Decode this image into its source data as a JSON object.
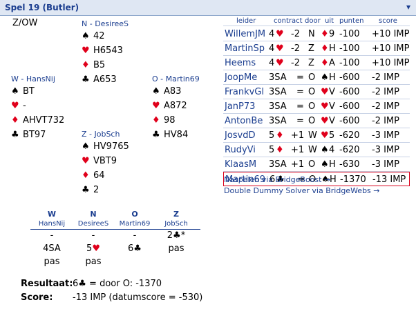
{
  "title": "Spel 19 (Butler)",
  "close_symbol": "▾",
  "dealer_vul": "Z/OW",
  "north": {
    "name": "N - DesireeS",
    "spades": "42",
    "hearts": "H6543",
    "diamonds": "B5",
    "clubs": "A653"
  },
  "west": {
    "name": "W - HansNij",
    "spades": "BT",
    "hearts": "-",
    "diamonds": "AHVT732",
    "clubs": "BT97"
  },
  "east": {
    "name": "O - Martin69",
    "spades": "A83",
    "hearts": "A872",
    "diamonds": "98",
    "clubs": "HV84"
  },
  "south": {
    "name": "Z - JobSch",
    "spades": "HV9765",
    "hearts": "VBT9",
    "diamonds": "64",
    "clubs": "2"
  },
  "table_headers": {
    "leider": "leider",
    "contract": "contract",
    "door": "door",
    "uit": "uit",
    "punten": "punten",
    "score": "score"
  },
  "results": [
    {
      "leader": "WillemJM",
      "level": "4",
      "strain": "♥",
      "res": "-2",
      "door": "N",
      "lead_suit": "♦",
      "lead_card": "9",
      "points": "-100",
      "score": "+10 IMP"
    },
    {
      "leader": "MartinSp",
      "level": "4",
      "strain": "♥",
      "res": "-2",
      "door": "Z",
      "lead_suit": "♦",
      "lead_card": "H",
      "points": "-100",
      "score": "+10 IMP"
    },
    {
      "leader": "Heems",
      "level": "4",
      "strain": "♥",
      "res": "-2",
      "door": "Z",
      "lead_suit": "♦",
      "lead_card": "A",
      "points": "-100",
      "score": "+10 IMP"
    },
    {
      "leader": "JoopMe",
      "level": "3SA",
      "strain": "",
      "res": "=",
      "door": "O",
      "lead_suit": "♠",
      "lead_card": "H",
      "points": "-600",
      "score": "-2 IMP"
    },
    {
      "leader": "FrankvGl",
      "level": "3SA",
      "strain": "",
      "res": "=",
      "door": "O",
      "lead_suit": "♥",
      "lead_card": "V",
      "points": "-600",
      "score": "-2 IMP"
    },
    {
      "leader": "JanP73",
      "level": "3SA",
      "strain": "",
      "res": "=",
      "door": "O",
      "lead_suit": "♥",
      "lead_card": "V",
      "points": "-600",
      "score": "-2 IMP"
    },
    {
      "leader": "AntonBe",
      "level": "3SA",
      "strain": "",
      "res": "=",
      "door": "O",
      "lead_suit": "♥",
      "lead_card": "V",
      "points": "-600",
      "score": "-2 IMP"
    },
    {
      "leader": "JosvdD",
      "level": "5",
      "strain": "♦",
      "res": "+1",
      "door": "W",
      "lead_suit": "♥",
      "lead_card": "5",
      "points": "-620",
      "score": "-3 IMP"
    },
    {
      "leader": "RudyVi",
      "level": "5",
      "strain": "♦",
      "res": "+1",
      "door": "W",
      "lead_suit": "♠",
      "lead_card": "4",
      "points": "-620",
      "score": "-3 IMP"
    },
    {
      "leader": "KlaasM",
      "level": "3SA",
      "strain": "",
      "res": "+1",
      "door": "O",
      "lead_suit": "♠",
      "lead_card": "H",
      "points": "-630",
      "score": "-3 IMP"
    },
    {
      "leader": "Martin69",
      "level": "6",
      "strain": "♣",
      "res": "=",
      "door": "O",
      "lead_suit": "♠",
      "lead_card": "H",
      "points": "-1370",
      "score": "-13 IMP"
    }
  ],
  "links": {
    "naspelen": "Naspelen via BridgeBoost →",
    "dds": "Double Dummy Solver via BridgeWebs →"
  },
  "bidding": {
    "seats": [
      "W",
      "N",
      "O",
      "Z"
    ],
    "names": [
      "HansNij",
      "DesireeS",
      "Martin69",
      "JobSch"
    ],
    "row1": [
      "-",
      "-",
      "-",
      "2♣*"
    ],
    "row2": [
      "4SA",
      "5♥",
      "6♣",
      "pas"
    ],
    "row3": [
      "pas",
      "pas",
      "",
      ""
    ]
  },
  "resultaat_label": "Resultaat:",
  "resultaat_value": "6♣ = door O: -1370",
  "score_label": "Score:",
  "score_value": "-13 IMP (datumscore = -530)"
}
